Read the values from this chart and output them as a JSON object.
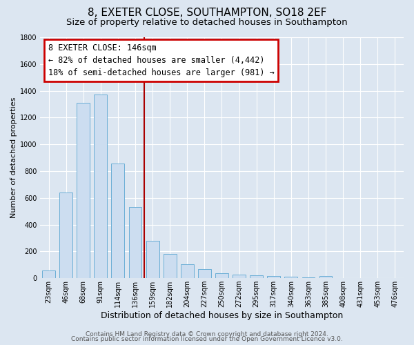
{
  "title": "8, EXETER CLOSE, SOUTHAMPTON, SO18 2EF",
  "subtitle": "Size of property relative to detached houses in Southampton",
  "xlabel": "Distribution of detached houses by size in Southampton",
  "ylabel": "Number of detached properties",
  "bar_labels": [
    "23sqm",
    "46sqm",
    "68sqm",
    "91sqm",
    "114sqm",
    "136sqm",
    "159sqm",
    "182sqm",
    "204sqm",
    "227sqm",
    "250sqm",
    "272sqm",
    "295sqm",
    "317sqm",
    "340sqm",
    "363sqm",
    "385sqm",
    "408sqm",
    "431sqm",
    "453sqm",
    "476sqm"
  ],
  "bar_values": [
    55,
    640,
    1310,
    1370,
    855,
    530,
    280,
    180,
    105,
    70,
    35,
    25,
    20,
    15,
    10,
    5,
    15,
    2,
    0,
    0,
    0
  ],
  "bar_color": "#ccddf0",
  "bar_edge_color": "#6aaed6",
  "ylim_max": 1800,
  "yticks": [
    0,
    200,
    400,
    600,
    800,
    1000,
    1200,
    1400,
    1600,
    1800
  ],
  "vline_color": "#aa0000",
  "bg_color": "#dce6f1",
  "annotation_title": "8 EXETER CLOSE: 146sqm",
  "annotation_line1": "← 82% of detached houses are smaller (4,442)",
  "annotation_line2": "18% of semi-detached houses are larger (981) →",
  "annotation_box_facecolor": "#ffffff",
  "annotation_border_color": "#cc0000",
  "footer_line1": "Contains HM Land Registry data © Crown copyright and database right 2024.",
  "footer_line2": "Contains public sector information licensed under the Open Government Licence v3.0.",
  "grid_color": "#ffffff",
  "title_fontsize": 11,
  "subtitle_fontsize": 9.5,
  "xlabel_fontsize": 9,
  "ylabel_fontsize": 8,
  "tick_fontsize": 7,
  "annotation_fontsize": 8.5,
  "footer_fontsize": 6.5,
  "vline_position": 5.5
}
